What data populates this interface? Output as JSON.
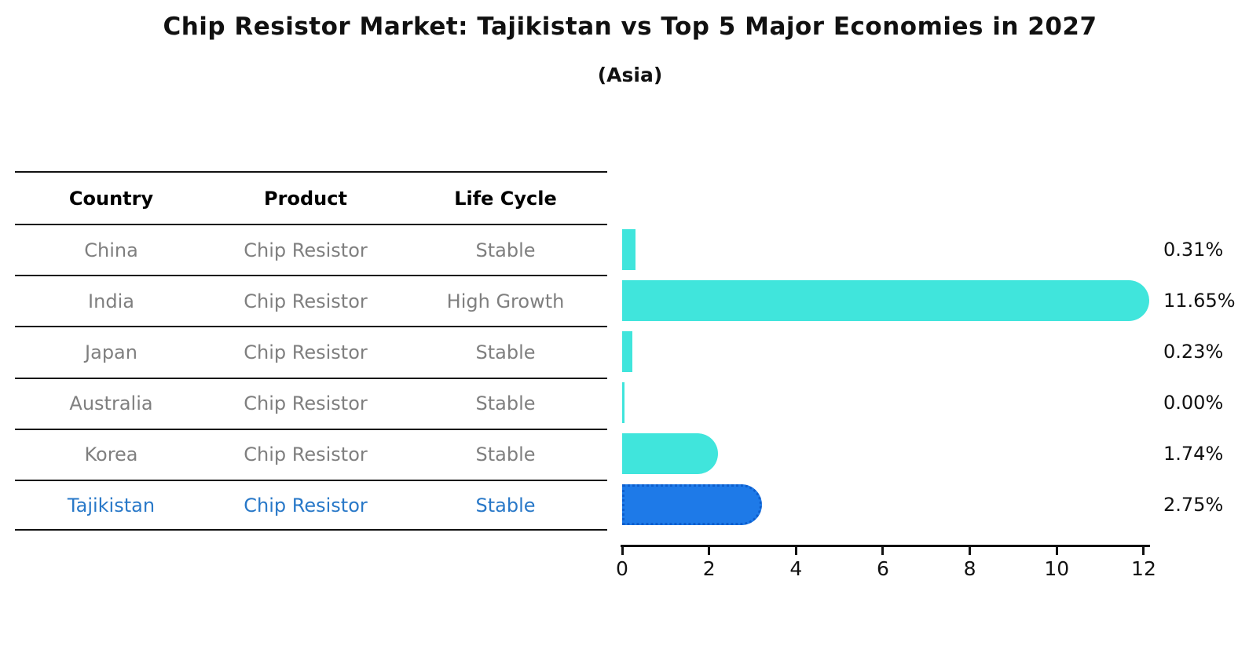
{
  "title": "Chip Resistor Market: Tajikistan vs Top 5 Major Economies in 2027",
  "subtitle": "(Asia)",
  "table": {
    "headers": [
      "Country",
      "Product",
      "Life Cycle"
    ],
    "rows": [
      {
        "country": "China",
        "product": "Chip Resistor",
        "life_cycle": "Stable",
        "highlight": false
      },
      {
        "country": "India",
        "product": "Chip Resistor",
        "life_cycle": "High Growth",
        "highlight": false
      },
      {
        "country": "Japan",
        "product": "Chip Resistor",
        "life_cycle": "Stable",
        "highlight": false
      },
      {
        "country": "Australia",
        "product": "Chip Resistor",
        "life_cycle": "Stable",
        "highlight": false
      },
      {
        "country": "Korea",
        "product": "Chip Resistor",
        "life_cycle": "Stable",
        "highlight": false
      },
      {
        "country": "Tajikistan",
        "product": "Chip Resistor",
        "life_cycle": "Stable",
        "highlight": true
      }
    ]
  },
  "chart_data": {
    "type": "bar",
    "orientation": "horizontal",
    "categories": [
      "China",
      "India",
      "Japan",
      "Australia",
      "Korea",
      "Tajikistan"
    ],
    "values": [
      0.31,
      11.65,
      0.23,
      0.0,
      1.74,
      2.75
    ],
    "value_labels": [
      "0.31%",
      "11.65%",
      "0.23%",
      "0.00%",
      "1.74%",
      "2.75%"
    ],
    "x_ticks": [
      0,
      2,
      4,
      6,
      8,
      10,
      12
    ],
    "xlim": [
      0,
      12
    ],
    "grid": false,
    "legend": "none",
    "highlight_index": 5
  },
  "colors": {
    "bar": "#40E5DC",
    "highlight_bar": "#1E7AE8",
    "highlight_bar_border": "#0D5ECD",
    "highlight_text": "#2878C8",
    "table_text": "#7f7f7f",
    "header_text": "#000000",
    "axis": "#111111"
  }
}
